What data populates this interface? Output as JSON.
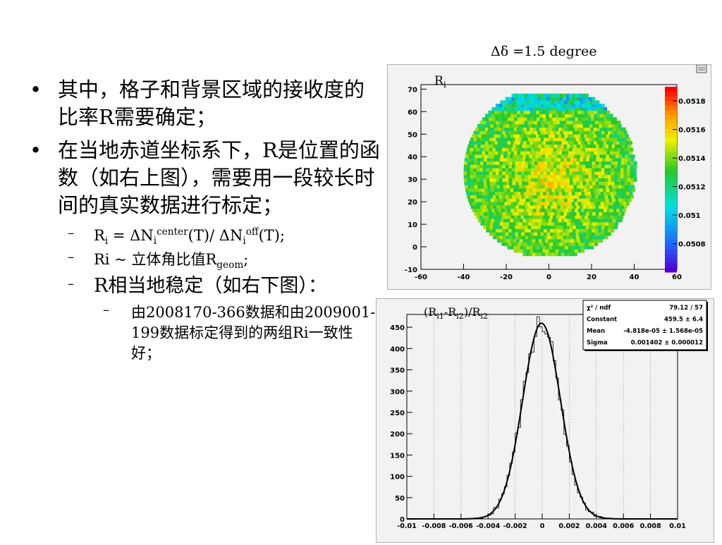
{
  "slide": {
    "bullets": [
      {
        "text": "其中，格子和背景区域的接收度的比率R需要确定；"
      },
      {
        "text_a": "在当地赤道坐标系下，R是位置的函数（如右上图），需要用一段较长时间的真实数据进行标定；"
      }
    ],
    "sub_bullets": {
      "ri_formula": {
        "r": "R",
        "r_sub": "i",
        "eq": " = ΔN",
        "n1_sub": "i",
        "n1_sup": "center",
        "mid": "(T)/ ΔN",
        "n2_sub": "i",
        "n2_sup": "off",
        "end": "(T);"
      },
      "ri_geom": {
        "prefix": "Ri  ~ 立体角比值R",
        "sub": "geom",
        "end": ";"
      },
      "stable": "R相当地稳定（如右下图）："
    },
    "sub_sub_bullet": "由2008170-366数据和由2009001-199数据标定得到的两组Ri一致性好；",
    "dash_glyph": "–",
    "dot_glyph": "•"
  },
  "chart_data": [
    {
      "type": "heatmap",
      "header": "Δδ =1.5 degree",
      "title": "R",
      "title_sub": "i",
      "x_ticks": [
        "-60",
        "-40",
        "-20",
        "0",
        "20",
        "40",
        "60"
      ],
      "y_ticks": [
        "-10",
        "0",
        "10",
        "20",
        "30",
        "40",
        "50",
        "60",
        "70"
      ],
      "xlim": [
        -60,
        60
      ],
      "ylim": [
        -10,
        72
      ],
      "color_scale_ticks": [
        "0.0508",
        "0.051",
        "0.0512",
        "0.0514",
        "0.0516",
        "0.0518"
      ],
      "z_range": [
        0.0506,
        0.0519
      ],
      "mean_value": 0.05135,
      "colors": {
        "low": "#5000d8",
        "blue": "#1f6bff",
        "cyan": "#00e0e0",
        "green": "#28c828",
        "yellow": "#f0f000",
        "orange": "#ff9900",
        "red": "#ff0000"
      }
    },
    {
      "type": "bar",
      "title": "(R",
      "title_parts": [
        "(R",
        "i1",
        "-R",
        "i2",
        ")/R",
        "i2"
      ],
      "x_ticks": [
        "-0.01",
        "-0.008",
        "-0.006",
        "-0.004",
        "-0.002",
        "0",
        "0.002",
        "0.004",
        "0.006",
        "0.008",
        "0.01"
      ],
      "y_ticks": [
        "0",
        "50",
        "100",
        "150",
        "200",
        "250",
        "300",
        "350",
        "400",
        "450"
      ],
      "xlim": [
        -0.01,
        0.01
      ],
      "ylim": [
        0,
        480
      ],
      "grid": "vertical",
      "fit": {
        "type": "gaussian",
        "constant": 459.5,
        "mean": -4.818e-05,
        "sigma": 0.001402
      },
      "stats": [
        {
          "label": "χ² / ndf",
          "value": "79.12 / 57"
        },
        {
          "label": "Constant",
          "value": "459.5 ± 6.4"
        },
        {
          "label": "Mean",
          "value": "-4.818e-05 ± 1.568e-05"
        },
        {
          "label": "Sigma",
          "value": "0.001402 ± 0.000012"
        }
      ]
    }
  ]
}
